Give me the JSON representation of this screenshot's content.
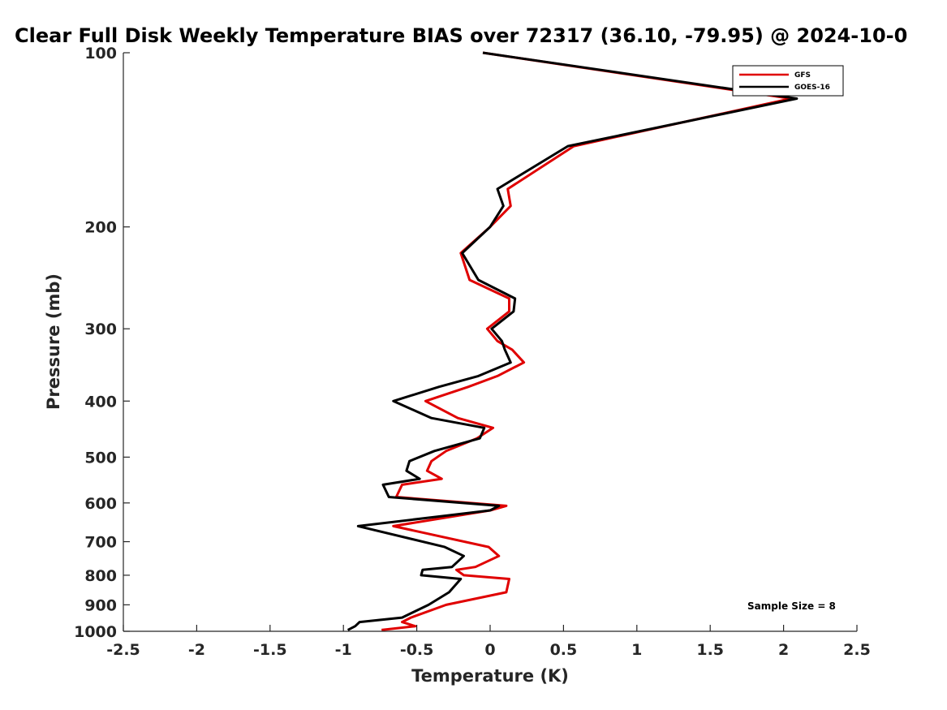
{
  "chart_data": {
    "type": "line",
    "title": "Clear Full Disk Weekly Temperature BIAS over 72317 (36.10, -79.95) @ 2024-10-0",
    "xlabel": "Temperature (K)",
    "ylabel": "Pressure (mb)",
    "xlim": [
      -2.5,
      2.5
    ],
    "ylim": [
      100,
      1000
    ],
    "y_scale": "log",
    "y_reversed": true,
    "xticks": [
      -2.5,
      -2,
      -1.5,
      -1,
      -0.5,
      0,
      0.5,
      1,
      1.5,
      2,
      2.5
    ],
    "xtick_labels": [
      "-2.5",
      "-2",
      "-1.5",
      "-1",
      "-0.5",
      "0",
      "0.5",
      "1",
      "1.5",
      "2",
      "2.5"
    ],
    "yticks": [
      100,
      200,
      300,
      400,
      500,
      600,
      700,
      800,
      900,
      1000
    ],
    "ytick_labels": [
      "100",
      "200",
      "300",
      "400",
      "500",
      "600",
      "700",
      "800",
      "900",
      "1000"
    ],
    "grid": false,
    "legend_position": "top-right",
    "annotation": "Sample Size = 8",
    "colors": {
      "GFS": "#e00000",
      "GOES-16": "#000000"
    },
    "series": [
      {
        "name": "GFS",
        "color": "#e00000",
        "points": [
          [
            -0.05,
            100
          ],
          [
            2.05,
            120
          ],
          [
            0.57,
            145
          ],
          [
            0.12,
            172
          ],
          [
            0.14,
            184
          ],
          [
            0.0,
            200
          ],
          [
            -0.2,
            222
          ],
          [
            -0.14,
            247
          ],
          [
            0.13,
            266
          ],
          [
            0.13,
            280
          ],
          [
            -0.02,
            300
          ],
          [
            0.05,
            315
          ],
          [
            0.15,
            326
          ],
          [
            0.23,
            343
          ],
          [
            0.05,
            362
          ],
          [
            -0.15,
            378
          ],
          [
            -0.44,
            400
          ],
          [
            -0.22,
            428
          ],
          [
            0.02,
            445
          ],
          [
            -0.09,
            464
          ],
          [
            -0.3,
            488
          ],
          [
            -0.4,
            508
          ],
          [
            -0.43,
            528
          ],
          [
            -0.33,
            545
          ],
          [
            -0.6,
            558
          ],
          [
            -0.64,
            586
          ],
          [
            0.11,
            607
          ],
          [
            0.0,
            618
          ],
          [
            -0.66,
            658
          ],
          [
            -0.01,
            715
          ],
          [
            0.06,
            741
          ],
          [
            -0.1,
            774
          ],
          [
            -0.23,
            783
          ],
          [
            -0.18,
            800
          ],
          [
            0.13,
            812
          ],
          [
            0.11,
            856
          ],
          [
            -0.3,
            900
          ],
          [
            -0.54,
            947
          ],
          [
            -0.6,
            964
          ],
          [
            -0.51,
            980
          ],
          [
            -0.74,
            995
          ]
        ]
      },
      {
        "name": "GOES-16",
        "color": "#000000",
        "points": [
          [
            -0.05,
            100
          ],
          [
            2.09,
            120
          ],
          [
            0.53,
            145
          ],
          [
            0.05,
            172
          ],
          [
            0.09,
            184
          ],
          [
            0.0,
            200
          ],
          [
            -0.19,
            222
          ],
          [
            -0.08,
            247
          ],
          [
            0.17,
            266
          ],
          [
            0.16,
            280
          ],
          [
            0.01,
            300
          ],
          [
            0.08,
            315
          ],
          [
            0.1,
            326
          ],
          [
            0.14,
            343
          ],
          [
            -0.08,
            362
          ],
          [
            -0.35,
            378
          ],
          [
            -0.66,
            400
          ],
          [
            -0.4,
            428
          ],
          [
            -0.04,
            445
          ],
          [
            -0.07,
            464
          ],
          [
            -0.38,
            488
          ],
          [
            -0.55,
            508
          ],
          [
            -0.57,
            528
          ],
          [
            -0.48,
            545
          ],
          [
            -0.73,
            558
          ],
          [
            -0.69,
            586
          ],
          [
            0.06,
            607
          ],
          [
            0.0,
            618
          ],
          [
            -0.9,
            658
          ],
          [
            -0.31,
            715
          ],
          [
            -0.18,
            741
          ],
          [
            -0.26,
            774
          ],
          [
            -0.46,
            783
          ],
          [
            -0.47,
            800
          ],
          [
            -0.2,
            812
          ],
          [
            -0.28,
            856
          ],
          [
            -0.42,
            900
          ],
          [
            -0.6,
            947
          ],
          [
            -0.89,
            964
          ],
          [
            -0.92,
            980
          ],
          [
            -0.97,
            995
          ]
        ]
      }
    ]
  }
}
